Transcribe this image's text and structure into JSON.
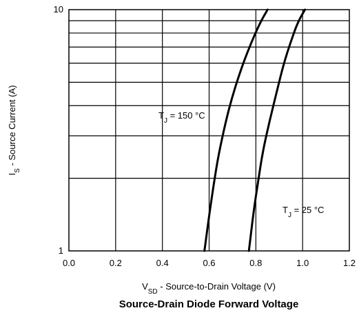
{
  "chart_data": {
    "type": "line",
    "title": "Source-Drain Diode Forward Voltage",
    "xlabel": {
      "main": "V",
      "sub": "SD",
      "rest": " - Source-to-Drain Voltage (V)"
    },
    "ylabel": {
      "main": "I",
      "sub": "S",
      "rest": " - Source Current (A)"
    },
    "xlim": [
      0.0,
      1.2
    ],
    "ylim": [
      1,
      10
    ],
    "yscale": "log",
    "grid": true,
    "x_ticks": [
      "0.0",
      "0.2",
      "0.4",
      "0.6",
      "0.8",
      "1.0",
      "1.2"
    ],
    "y_ticks": [
      "1",
      "10"
    ],
    "series": [
      {
        "label_main": "T",
        "label_sub": "J",
        "label_rest": " = 150 °C",
        "x": [
          0.58,
          0.6,
          0.62,
          0.64,
          0.67,
          0.7,
          0.74,
          0.78,
          0.82,
          0.85
        ],
        "y": [
          1.0,
          1.4,
          1.9,
          2.5,
          3.4,
          4.4,
          5.8,
          7.3,
          8.9,
          10.0
        ]
      },
      {
        "label_main": "T",
        "label_sub": "J",
        "label_rest": " = 25 °C",
        "x": [
          0.77,
          0.79,
          0.81,
          0.83,
          0.86,
          0.89,
          0.92,
          0.95,
          0.98,
          1.01
        ],
        "y": [
          1.0,
          1.45,
          1.95,
          2.6,
          3.5,
          4.6,
          6.0,
          7.4,
          8.9,
          10.0
        ]
      }
    ]
  }
}
